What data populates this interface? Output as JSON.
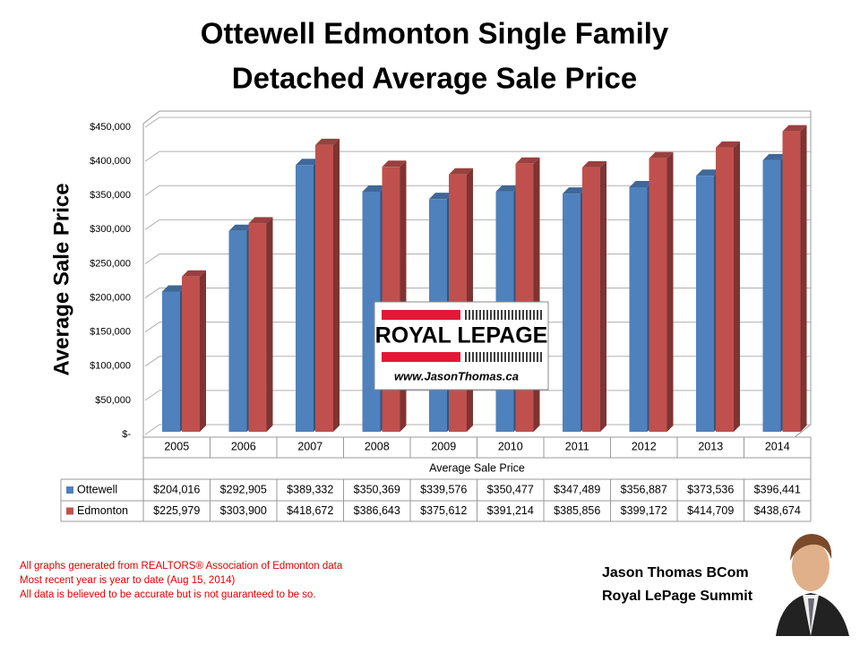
{
  "chart_data": {
    "type": "bar3d",
    "title": [
      "Ottewell Edmonton Single Family",
      "Detached Average Sale Price"
    ],
    "y_label": "Average Sale Price",
    "x_label": "Average Sale Price",
    "categories": [
      "2005",
      "2006",
      "2007",
      "2008",
      "2009",
      "2010",
      "2011",
      "2012",
      "2013",
      "2014"
    ],
    "series": [
      {
        "name": "Ottewell",
        "color": "#4f81bd",
        "values": [
          204016,
          292905,
          389332,
          350369,
          339576,
          350477,
          347489,
          356887,
          373536,
          396441
        ],
        "value_labels": [
          "$204,016",
          "$292,905",
          "$389,332",
          "$350,369",
          "$339,576",
          "$350,477",
          "$347,489",
          "$356,887",
          "$373,536",
          "$396,441"
        ]
      },
      {
        "name": "Edmonton",
        "color": "#c0504d",
        "values": [
          225979,
          303900,
          418672,
          386643,
          375612,
          391214,
          385856,
          399172,
          414709,
          438674
        ],
        "value_labels": [
          "$225,979",
          "$303,900",
          "$418,672",
          "$386,643",
          "$375,612",
          "$391,214",
          "$385,856",
          "$399,172",
          "$414,709",
          "$438,674"
        ]
      }
    ],
    "ylim": [
      0,
      450000
    ],
    "yticks": [
      {
        "value": 0,
        "label": "$-"
      },
      {
        "value": 50000,
        "label": "$50,000"
      },
      {
        "value": 100000,
        "label": "$100,000"
      },
      {
        "value": 150000,
        "label": "$150,000"
      },
      {
        "value": 200000,
        "label": "$200,000"
      },
      {
        "value": 250000,
        "label": "$250,000"
      },
      {
        "value": 300000,
        "label": "$300,000"
      },
      {
        "value": 350000,
        "label": "$350,000"
      },
      {
        "value": 400000,
        "label": "$400,000"
      },
      {
        "value": 450000,
        "label": "$450,000"
      }
    ],
    "grid": true
  },
  "logo": {
    "brand": "ROYAL LEPAGE",
    "url": "www.JasonThomas.ca"
  },
  "notes": [
    "All graphs generated from REALTORS® Association of Edmonton data",
    "Most recent year is year to date (Aug 15, 2014)",
    "All data is believed to be accurate but is not guaranteed to be so."
  ],
  "signature": [
    "Jason Thomas BCom",
    "Royal LePage Summit"
  ]
}
